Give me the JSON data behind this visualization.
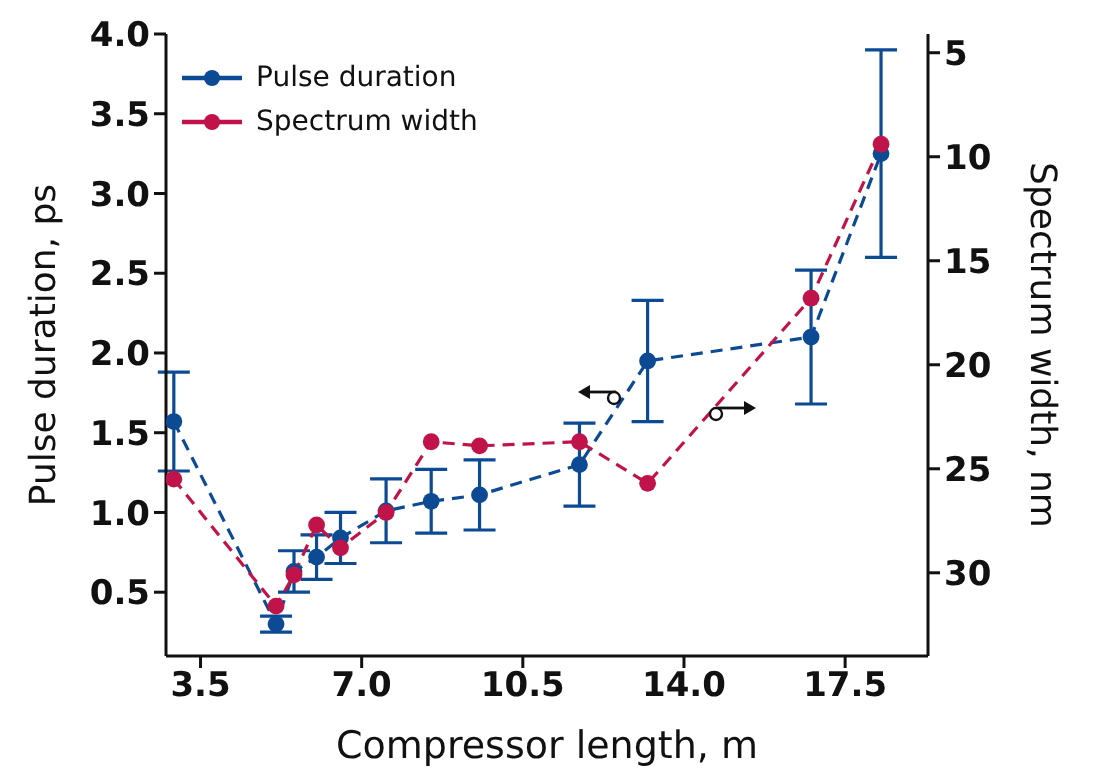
{
  "chart_data": {
    "type": "line",
    "xlabel": "Compressor length, m",
    "ylabel": "Pulse duration, ps",
    "y2label": "Spectrum width, nm",
    "x": [
      2.92,
      5.14,
      5.53,
      6.02,
      6.54,
      7.53,
      8.51,
      9.56,
      11.73,
      13.21,
      16.76,
      18.28
    ],
    "series": [
      {
        "name": "Pulse duration",
        "color": "#0d4a94",
        "values": [
          1.57,
          0.3,
          0.63,
          0.72,
          0.84,
          1.01,
          1.07,
          1.11,
          1.3,
          1.95,
          2.1,
          3.25
        ],
        "errors": [
          0.31,
          0.05,
          0.13,
          0.14,
          0.16,
          0.2,
          0.2,
          0.22,
          0.26,
          0.38,
          0.42,
          0.65
        ]
      },
      {
        "name": "Spectrum width",
        "color": "#c0134a",
        "axis": "y2",
        "values": [
          25.5,
          31.6,
          30.1,
          27.7,
          28.8,
          27.1,
          23.7,
          23.9,
          23.7,
          25.7,
          16.8,
          9.4
        ]
      }
    ],
    "xlim": [
      2.75,
      19.3
    ],
    "xticks": [
      3.5,
      {
        "value": 7,
        "label": "7.0"
      },
      10.5,
      {
        "value": 14,
        "label": "14.0"
      },
      17.5
    ],
    "ylim": [
      0.1,
      4.0
    ],
    "yticks": [
      0.5,
      {
        "value": 1,
        "label": "1.0"
      },
      1.5,
      {
        "value": 2,
        "label": "2.0"
      },
      2.5,
      {
        "value": 3,
        "label": "3.0"
      },
      3.5,
      {
        "value": 4,
        "label": "4.0"
      }
    ],
    "y2lim": [
      34,
      4.1
    ],
    "y2ticks": [
      5,
      10,
      15,
      20,
      25,
      30
    ],
    "grid": false,
    "legend": "top left",
    "marker": "circle",
    "line_style": "dashed"
  }
}
